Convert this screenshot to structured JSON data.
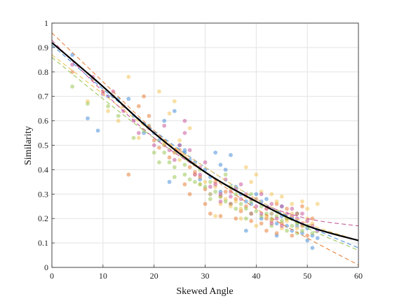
{
  "chart_data": {
    "type": "scatter",
    "title": "",
    "xlabel": "Skewed Angle",
    "ylabel": "Similarity",
    "xlim": [
      0,
      60
    ],
    "ylim": [
      0,
      1
    ],
    "x_ticks": [
      "0",
      "10",
      "20",
      "30",
      "40",
      "50",
      "60"
    ],
    "y_ticks": [
      "0",
      "0.1",
      "0.2",
      "0.3",
      "0.4",
      "0.5",
      "0.6",
      "0.7",
      "0.8",
      "0.9",
      "1"
    ],
    "grid": true,
    "legend": false,
    "point_color_alpha": 0.55,
    "series": [
      {
        "color": "#4a90d9",
        "points": [
          [
            4,
            0.87
          ],
          [
            7,
            0.61
          ],
          [
            9,
            0.56
          ],
          [
            11,
            0.7
          ],
          [
            13,
            0.69
          ],
          [
            15,
            0.69
          ],
          [
            16,
            0.62
          ],
          [
            18,
            0.55
          ],
          [
            19,
            0.58
          ],
          [
            20,
            0.55
          ],
          [
            22,
            0.6
          ],
          [
            23,
            0.35
          ],
          [
            24,
            0.64
          ],
          [
            25,
            0.5
          ],
          [
            26,
            0.47
          ],
          [
            27,
            0.44
          ],
          [
            28,
            0.43
          ],
          [
            30,
            0.4
          ],
          [
            31,
            0.37
          ],
          [
            32,
            0.47
          ],
          [
            33,
            0.42
          ],
          [
            34,
            0.4
          ],
          [
            35,
            0.46
          ],
          [
            36,
            0.33
          ],
          [
            37,
            0.3
          ],
          [
            38,
            0.27
          ],
          [
            39,
            0.26
          ],
          [
            40,
            0.3
          ],
          [
            41,
            0.27
          ],
          [
            42,
            0.28
          ],
          [
            43,
            0.22
          ],
          [
            44,
            0.18
          ],
          [
            45,
            0.21
          ],
          [
            46,
            0.17
          ],
          [
            47,
            0.2
          ],
          [
            48,
            0.17
          ],
          [
            49,
            0.14
          ],
          [
            50,
            0.11
          ],
          [
            51,
            0.13
          ],
          [
            52,
            0.12
          ],
          [
            38,
            0.15
          ],
          [
            35,
            0.26
          ],
          [
            41,
            0.2
          ],
          [
            45,
            0.25
          ],
          [
            48,
            0.22
          ],
          [
            31,
            0.3
          ],
          [
            26,
            0.48
          ],
          [
            21,
            0.52
          ],
          [
            29,
            0.36
          ],
          [
            44,
            0.13
          ],
          [
            50,
            0.16
          ],
          [
            39,
            0.22
          ],
          [
            33,
            0.31
          ],
          [
            47,
            0.15
          ],
          [
            51,
            0.08
          ]
        ]
      },
      {
        "color": "#e8823c",
        "points": [
          [
            4,
            0.8
          ],
          [
            8,
            0.77
          ],
          [
            10,
            0.72
          ],
          [
            12,
            0.7
          ],
          [
            14,
            0.66
          ],
          [
            15,
            0.38
          ],
          [
            17,
            0.66
          ],
          [
            18,
            0.7
          ],
          [
            19,
            0.62
          ],
          [
            20,
            0.52
          ],
          [
            21,
            0.49
          ],
          [
            22,
            0.5
          ],
          [
            24,
            0.47
          ],
          [
            25,
            0.48
          ],
          [
            26,
            0.34
          ],
          [
            27,
            0.41
          ],
          [
            28,
            0.39
          ],
          [
            29,
            0.37
          ],
          [
            30,
            0.32
          ],
          [
            31,
            0.22
          ],
          [
            32,
            0.35
          ],
          [
            33,
            0.29
          ],
          [
            34,
            0.31
          ],
          [
            35,
            0.26
          ],
          [
            36,
            0.2
          ],
          [
            37,
            0.23
          ],
          [
            38,
            0.25
          ],
          [
            39,
            0.22
          ],
          [
            40,
            0.28
          ],
          [
            41,
            0.18
          ],
          [
            42,
            0.2
          ],
          [
            43,
            0.19
          ],
          [
            44,
            0.26
          ],
          [
            45,
            0.18
          ],
          [
            46,
            0.2
          ],
          [
            47,
            0.13
          ],
          [
            48,
            0.22
          ],
          [
            49,
            0.17
          ],
          [
            50,
            0.13
          ],
          [
            51,
            0.2
          ],
          [
            36,
            0.28
          ],
          [
            42,
            0.15
          ],
          [
            46,
            0.24
          ],
          [
            30,
            0.26
          ],
          [
            39,
            0.19
          ],
          [
            44,
            0.14
          ],
          [
            49,
            0.25
          ],
          [
            33,
            0.21
          ],
          [
            27,
            0.3
          ],
          [
            23,
            0.45
          ]
        ]
      },
      {
        "color": "#f2c45a",
        "points": [
          [
            7,
            0.68
          ],
          [
            11,
            0.64
          ],
          [
            13,
            0.6
          ],
          [
            15,
            0.78
          ],
          [
            17,
            0.53
          ],
          [
            19,
            0.58
          ],
          [
            21,
            0.72
          ],
          [
            22,
            0.51
          ],
          [
            23,
            0.63
          ],
          [
            24,
            0.68
          ],
          [
            25,
            0.44
          ],
          [
            26,
            0.46
          ],
          [
            27,
            0.57
          ],
          [
            28,
            0.38
          ],
          [
            29,
            0.34
          ],
          [
            30,
            0.35
          ],
          [
            31,
            0.3
          ],
          [
            32,
            0.33
          ],
          [
            33,
            0.26
          ],
          [
            34,
            0.28
          ],
          [
            35,
            0.25
          ],
          [
            36,
            0.27
          ],
          [
            37,
            0.24
          ],
          [
            38,
            0.41
          ],
          [
            39,
            0.35
          ],
          [
            40,
            0.38
          ],
          [
            41,
            0.31
          ],
          [
            42,
            0.21
          ],
          [
            43,
            0.22
          ],
          [
            44,
            0.27
          ],
          [
            45,
            0.16
          ],
          [
            46,
            0.19
          ],
          [
            47,
            0.22
          ],
          [
            48,
            0.16
          ],
          [
            49,
            0.27
          ],
          [
            50,
            0.2
          ],
          [
            51,
            0.18
          ],
          [
            52,
            0.26
          ],
          [
            32,
            0.21
          ],
          [
            37,
            0.2
          ],
          [
            42,
            0.24
          ],
          [
            47,
            0.26
          ],
          [
            25,
            0.52
          ],
          [
            35,
            0.32
          ],
          [
            45,
            0.29
          ],
          [
            40,
            0.17
          ],
          [
            28,
            0.42
          ],
          [
            50,
            0.24
          ],
          [
            43,
            0.3
          ],
          [
            38,
            0.29
          ]
        ]
      },
      {
        "color": "#9cc65a",
        "points": [
          [
            4,
            0.74
          ],
          [
            7,
            0.67
          ],
          [
            11,
            0.66
          ],
          [
            13,
            0.62
          ],
          [
            16,
            0.53
          ],
          [
            18,
            0.56
          ],
          [
            20,
            0.47
          ],
          [
            21,
            0.43
          ],
          [
            22,
            0.47
          ],
          [
            23,
            0.43
          ],
          [
            24,
            0.41
          ],
          [
            26,
            0.38
          ],
          [
            27,
            0.36
          ],
          [
            28,
            0.35
          ],
          [
            29,
            0.34
          ],
          [
            30,
            0.33
          ],
          [
            31,
            0.35
          ],
          [
            32,
            0.31
          ],
          [
            33,
            0.29
          ],
          [
            34,
            0.27
          ],
          [
            35,
            0.33
          ],
          [
            36,
            0.3
          ],
          [
            37,
            0.26
          ],
          [
            38,
            0.24
          ],
          [
            39,
            0.27
          ],
          [
            40,
            0.23
          ],
          [
            41,
            0.25
          ],
          [
            42,
            0.22
          ],
          [
            43,
            0.2
          ],
          [
            44,
            0.21
          ],
          [
            45,
            0.19
          ],
          [
            46,
            0.2
          ],
          [
            47,
            0.17
          ],
          [
            48,
            0.18
          ],
          [
            49,
            0.15
          ],
          [
            50,
            0.17
          ],
          [
            51,
            0.14
          ],
          [
            34,
            0.38
          ],
          [
            29,
            0.4
          ],
          [
            44,
            0.23
          ],
          [
            39,
            0.3
          ],
          [
            48,
            0.14
          ],
          [
            24,
            0.37
          ],
          [
            36,
            0.24
          ],
          [
            41,
            0.21
          ],
          [
            46,
            0.15
          ],
          [
            31,
            0.28
          ],
          [
            26,
            0.42
          ],
          [
            43,
            0.17
          ],
          [
            38,
            0.2
          ]
        ]
      },
      {
        "color": "#c85a9a",
        "points": [
          [
            4,
            0.83
          ],
          [
            8,
            0.78
          ],
          [
            10,
            0.71
          ],
          [
            12,
            0.72
          ],
          [
            14,
            0.64
          ],
          [
            16,
            0.6
          ],
          [
            17,
            0.55
          ],
          [
            19,
            0.57
          ],
          [
            20,
            0.5
          ],
          [
            22,
            0.58
          ],
          [
            23,
            0.48
          ],
          [
            24,
            0.44
          ],
          [
            25,
            0.5
          ],
          [
            26,
            0.55
          ],
          [
            27,
            0.48
          ],
          [
            28,
            0.38
          ],
          [
            29,
            0.41
          ],
          [
            30,
            0.43
          ],
          [
            31,
            0.33
          ],
          [
            32,
            0.34
          ],
          [
            33,
            0.3
          ],
          [
            34,
            0.36
          ],
          [
            35,
            0.29
          ],
          [
            36,
            0.32
          ],
          [
            37,
            0.34
          ],
          [
            38,
            0.3
          ],
          [
            39,
            0.28
          ],
          [
            40,
            0.25
          ],
          [
            41,
            0.22
          ],
          [
            42,
            0.24
          ],
          [
            43,
            0.26
          ],
          [
            44,
            0.2
          ],
          [
            45,
            0.25
          ],
          [
            46,
            0.22
          ],
          [
            47,
            0.21
          ],
          [
            48,
            0.2
          ],
          [
            49,
            0.18
          ],
          [
            50,
            0.19
          ],
          [
            51,
            0.17
          ],
          [
            52,
            0.15
          ],
          [
            26,
            0.6
          ],
          [
            33,
            0.27
          ],
          [
            37,
            0.28
          ],
          [
            41,
            0.3
          ],
          [
            45,
            0.17
          ],
          [
            49,
            0.22
          ],
          [
            29,
            0.38
          ],
          [
            35,
            0.31
          ],
          [
            43,
            0.18
          ],
          [
            47,
            0.24
          ]
        ]
      }
    ],
    "fit_lines": [
      {
        "color": "#000000",
        "width": 2.2,
        "dash": "",
        "points": [
          [
            0,
            0.92
          ],
          [
            10,
            0.74
          ],
          [
            20,
            0.55
          ],
          [
            30,
            0.39
          ],
          [
            40,
            0.27
          ],
          [
            50,
            0.17
          ],
          [
            60,
            0.11
          ]
        ]
      },
      {
        "color": "#4a90d9",
        "width": 1.1,
        "dash": "6,4",
        "points": [
          [
            0,
            0.91
          ],
          [
            10,
            0.73
          ],
          [
            20,
            0.56
          ],
          [
            30,
            0.41
          ],
          [
            40,
            0.28
          ],
          [
            50,
            0.17
          ],
          [
            60,
            0.08
          ]
        ]
      },
      {
        "color": "#e8823c",
        "width": 1.1,
        "dash": "6,4",
        "points": [
          [
            0,
            0.96
          ],
          [
            10,
            0.76
          ],
          [
            20,
            0.56
          ],
          [
            30,
            0.39
          ],
          [
            40,
            0.24
          ],
          [
            50,
            0.12
          ],
          [
            60,
            0.01
          ]
        ]
      },
      {
        "color": "#f2c45a",
        "width": 1.1,
        "dash": "6,4",
        "points": [
          [
            0,
            0.87
          ],
          [
            10,
            0.71
          ],
          [
            20,
            0.55
          ],
          [
            30,
            0.41
          ],
          [
            40,
            0.28
          ],
          [
            50,
            0.18
          ],
          [
            60,
            0.11
          ]
        ]
      },
      {
        "color": "#9cc65a",
        "width": 1.1,
        "dash": "6,4",
        "points": [
          [
            0,
            0.86
          ],
          [
            10,
            0.69
          ],
          [
            20,
            0.53
          ],
          [
            30,
            0.39
          ],
          [
            40,
            0.27
          ],
          [
            50,
            0.16
          ],
          [
            60,
            0.07
          ]
        ]
      },
      {
        "color": "#c85a9a",
        "width": 1.1,
        "dash": "6,4",
        "points": [
          [
            0,
            0.93
          ],
          [
            10,
            0.72
          ],
          [
            20,
            0.53
          ],
          [
            30,
            0.39
          ],
          [
            40,
            0.27
          ],
          [
            50,
            0.2
          ],
          [
            60,
            0.17
          ]
        ]
      }
    ]
  }
}
